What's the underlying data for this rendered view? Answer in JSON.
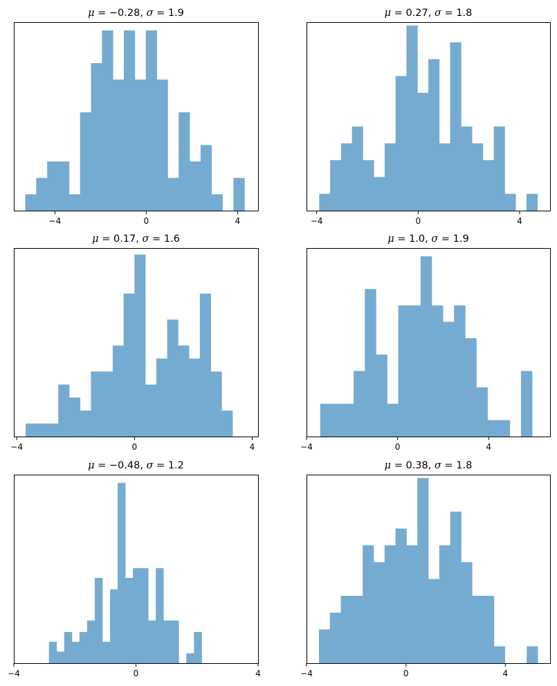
{
  "figure": {
    "bar_color": "#76abd1",
    "frame_color": "#000000",
    "background": "#ffffff"
  },
  "chart_data": [
    {
      "type": "bar",
      "title": "μ = −0.28,    σ = 1.9",
      "title_parts": {
        "mu": "−0.28",
        "sigma": "1.9"
      },
      "xlabel": "",
      "ylabel": "",
      "grid": false,
      "xlim": [
        -5.8,
        4.9
      ],
      "ylim": [
        0,
        11.5
      ],
      "xticks": [
        -4,
        0,
        4
      ],
      "xtick_labels": [
        "−4",
        "0",
        "4"
      ],
      "y_axis_ticks": "hidden",
      "bin_edges": [
        -5.3,
        -4.82,
        -4.34,
        -3.86,
        -3.38,
        -2.9,
        -2.42,
        -1.94,
        -1.46,
        -0.98,
        -0.5,
        -0.02,
        0.46,
        0.94,
        1.42,
        1.9,
        2.38,
        2.86,
        3.34,
        3.82,
        4.3
      ],
      "counts": [
        1,
        2,
        3,
        3,
        1,
        6,
        9,
        11,
        8,
        11,
        8,
        11,
        8,
        2,
        6,
        3,
        4,
        1,
        0,
        2
      ]
    },
    {
      "type": "bar",
      "title": "μ = 0.27,    σ = 1.8",
      "title_parts": {
        "mu": "0.27",
        "sigma": "1.8"
      },
      "xlabel": "",
      "ylabel": "",
      "grid": false,
      "xlim": [
        -4.4,
        5.2
      ],
      "ylim": [
        0,
        11.2
      ],
      "xticks": [
        -4,
        0,
        4
      ],
      "xtick_labels": [
        "−4",
        "0",
        "4"
      ],
      "y_axis_ticks": "hidden",
      "bin_edges": [
        -3.9,
        -3.47,
        -3.04,
        -2.61,
        -2.18,
        -1.75,
        -1.32,
        -0.89,
        -0.46,
        -0.03,
        0.4,
        0.83,
        1.26,
        1.69,
        2.12,
        2.55,
        2.98,
        3.41,
        3.84,
        4.27,
        4.7
      ],
      "counts": [
        1,
        3,
        4,
        5,
        3,
        2,
        4,
        8,
        11,
        7,
        9,
        4,
        10,
        5,
        4,
        3,
        5,
        1,
        0,
        1
      ]
    },
    {
      "type": "bar",
      "title": "μ = 0.17,    σ = 1.6",
      "title_parts": {
        "mu": "0.17",
        "sigma": "1.6"
      },
      "xlabel": "",
      "ylabel": "",
      "grid": false,
      "xlim": [
        -4.1,
        4.2
      ],
      "ylim": [
        0,
        14.5
      ],
      "xticks": [
        -4,
        0,
        4
      ],
      "xtick_labels": [
        "−4",
        "0",
        "4"
      ],
      "y_axis_ticks": "hidden",
      "bin_edges": [
        -3.7,
        -3.33,
        -2.96,
        -2.59,
        -2.22,
        -1.85,
        -1.48,
        -1.11,
        -0.74,
        -0.37,
        0.0,
        0.37,
        0.74,
        1.11,
        1.48,
        1.85,
        2.22,
        2.59,
        2.96,
        3.33,
        3.7
      ],
      "counts": [
        1,
        1,
        1,
        4,
        3,
        2,
        5,
        5,
        7,
        11,
        14,
        4,
        6,
        9,
        7,
        6,
        11,
        5,
        2,
        0
      ]
    },
    {
      "type": "bar",
      "title": "μ = 1.0,    σ = 1.9",
      "title_parts": {
        "mu": "1.0",
        "sigma": "1.9"
      },
      "xlabel": "",
      "ylabel": "",
      "grid": false,
      "xlim": [
        -4.0,
        6.7
      ],
      "ylim": [
        0,
        11.5
      ],
      "xticks": [
        -4,
        0,
        4
      ],
      "xtick_labels": [
        "−4",
        "0",
        "4"
      ],
      "y_axis_ticks": "hidden",
      "bin_edges": [
        -3.4,
        -2.91,
        -2.42,
        -1.93,
        -1.44,
        -0.95,
        -0.46,
        0.03,
        0.52,
        1.01,
        1.5,
        1.99,
        2.48,
        2.97,
        3.46,
        3.95,
        4.44,
        4.93,
        5.42,
        5.91,
        6.4
      ],
      "counts": [
        2,
        2,
        2,
        4,
        9,
        5,
        2,
        8,
        8,
        11,
        8,
        7,
        8,
        6,
        3,
        1,
        1,
        0,
        4,
        0
      ]
    },
    {
      "type": "bar",
      "title": "μ = −0.48,    σ = 1.2",
      "title_parts": {
        "mu": "−0.48",
        "sigma": "1.2"
      },
      "xlabel": "",
      "ylabel": "",
      "grid": false,
      "xlim": [
        -4,
        4
      ],
      "ylim": [
        0,
        11.5
      ],
      "xticks": [
        -4,
        0,
        4
      ],
      "xtick_labels": [
        "−4",
        "0",
        "4"
      ],
      "y_axis_ticks": "hidden",
      "bin_edges": [
        -2.85,
        -2.6,
        -2.35,
        -2.1,
        -1.85,
        -1.6,
        -1.35,
        -1.1,
        -0.85,
        -0.6,
        -0.35,
        -0.1,
        0.15,
        0.4,
        0.65,
        0.9,
        1.15,
        1.4,
        1.65,
        1.9,
        2.15
      ],
      "counts": [
        1.3,
        0.7,
        1.9,
        1.3,
        1.9,
        2.6,
        5.2,
        1.3,
        4.5,
        11,
        5.2,
        5.8,
        5.8,
        2.6,
        5.8,
        2.6,
        2.6,
        0,
        0.6,
        1.9
      ]
    },
    {
      "type": "bar",
      "title": "μ = 0.38,    σ = 1.8",
      "title_parts": {
        "mu": "0.38",
        "sigma": "1.8"
      },
      "xlabel": "",
      "ylabel": "",
      "grid": false,
      "xlim": [
        -4.0,
        5.8
      ],
      "ylim": [
        0,
        11.2
      ],
      "xticks": [
        -4,
        0,
        4
      ],
      "xtick_labels": [
        "−4",
        "0",
        "4"
      ],
      "y_axis_ticks": "hidden",
      "bin_edges": [
        -3.5,
        -3.06,
        -2.62,
        -2.18,
        -1.74,
        -1.3,
        -0.86,
        -0.42,
        0.02,
        0.46,
        0.9,
        1.34,
        1.78,
        2.22,
        2.66,
        3.1,
        3.54,
        3.98,
        4.42,
        4.86,
        5.3
      ],
      "counts": [
        2,
        3,
        4,
        4,
        7,
        6,
        7,
        8,
        7,
        11,
        5,
        7,
        9,
        6,
        4,
        4,
        1,
        0,
        0,
        1
      ]
    }
  ]
}
